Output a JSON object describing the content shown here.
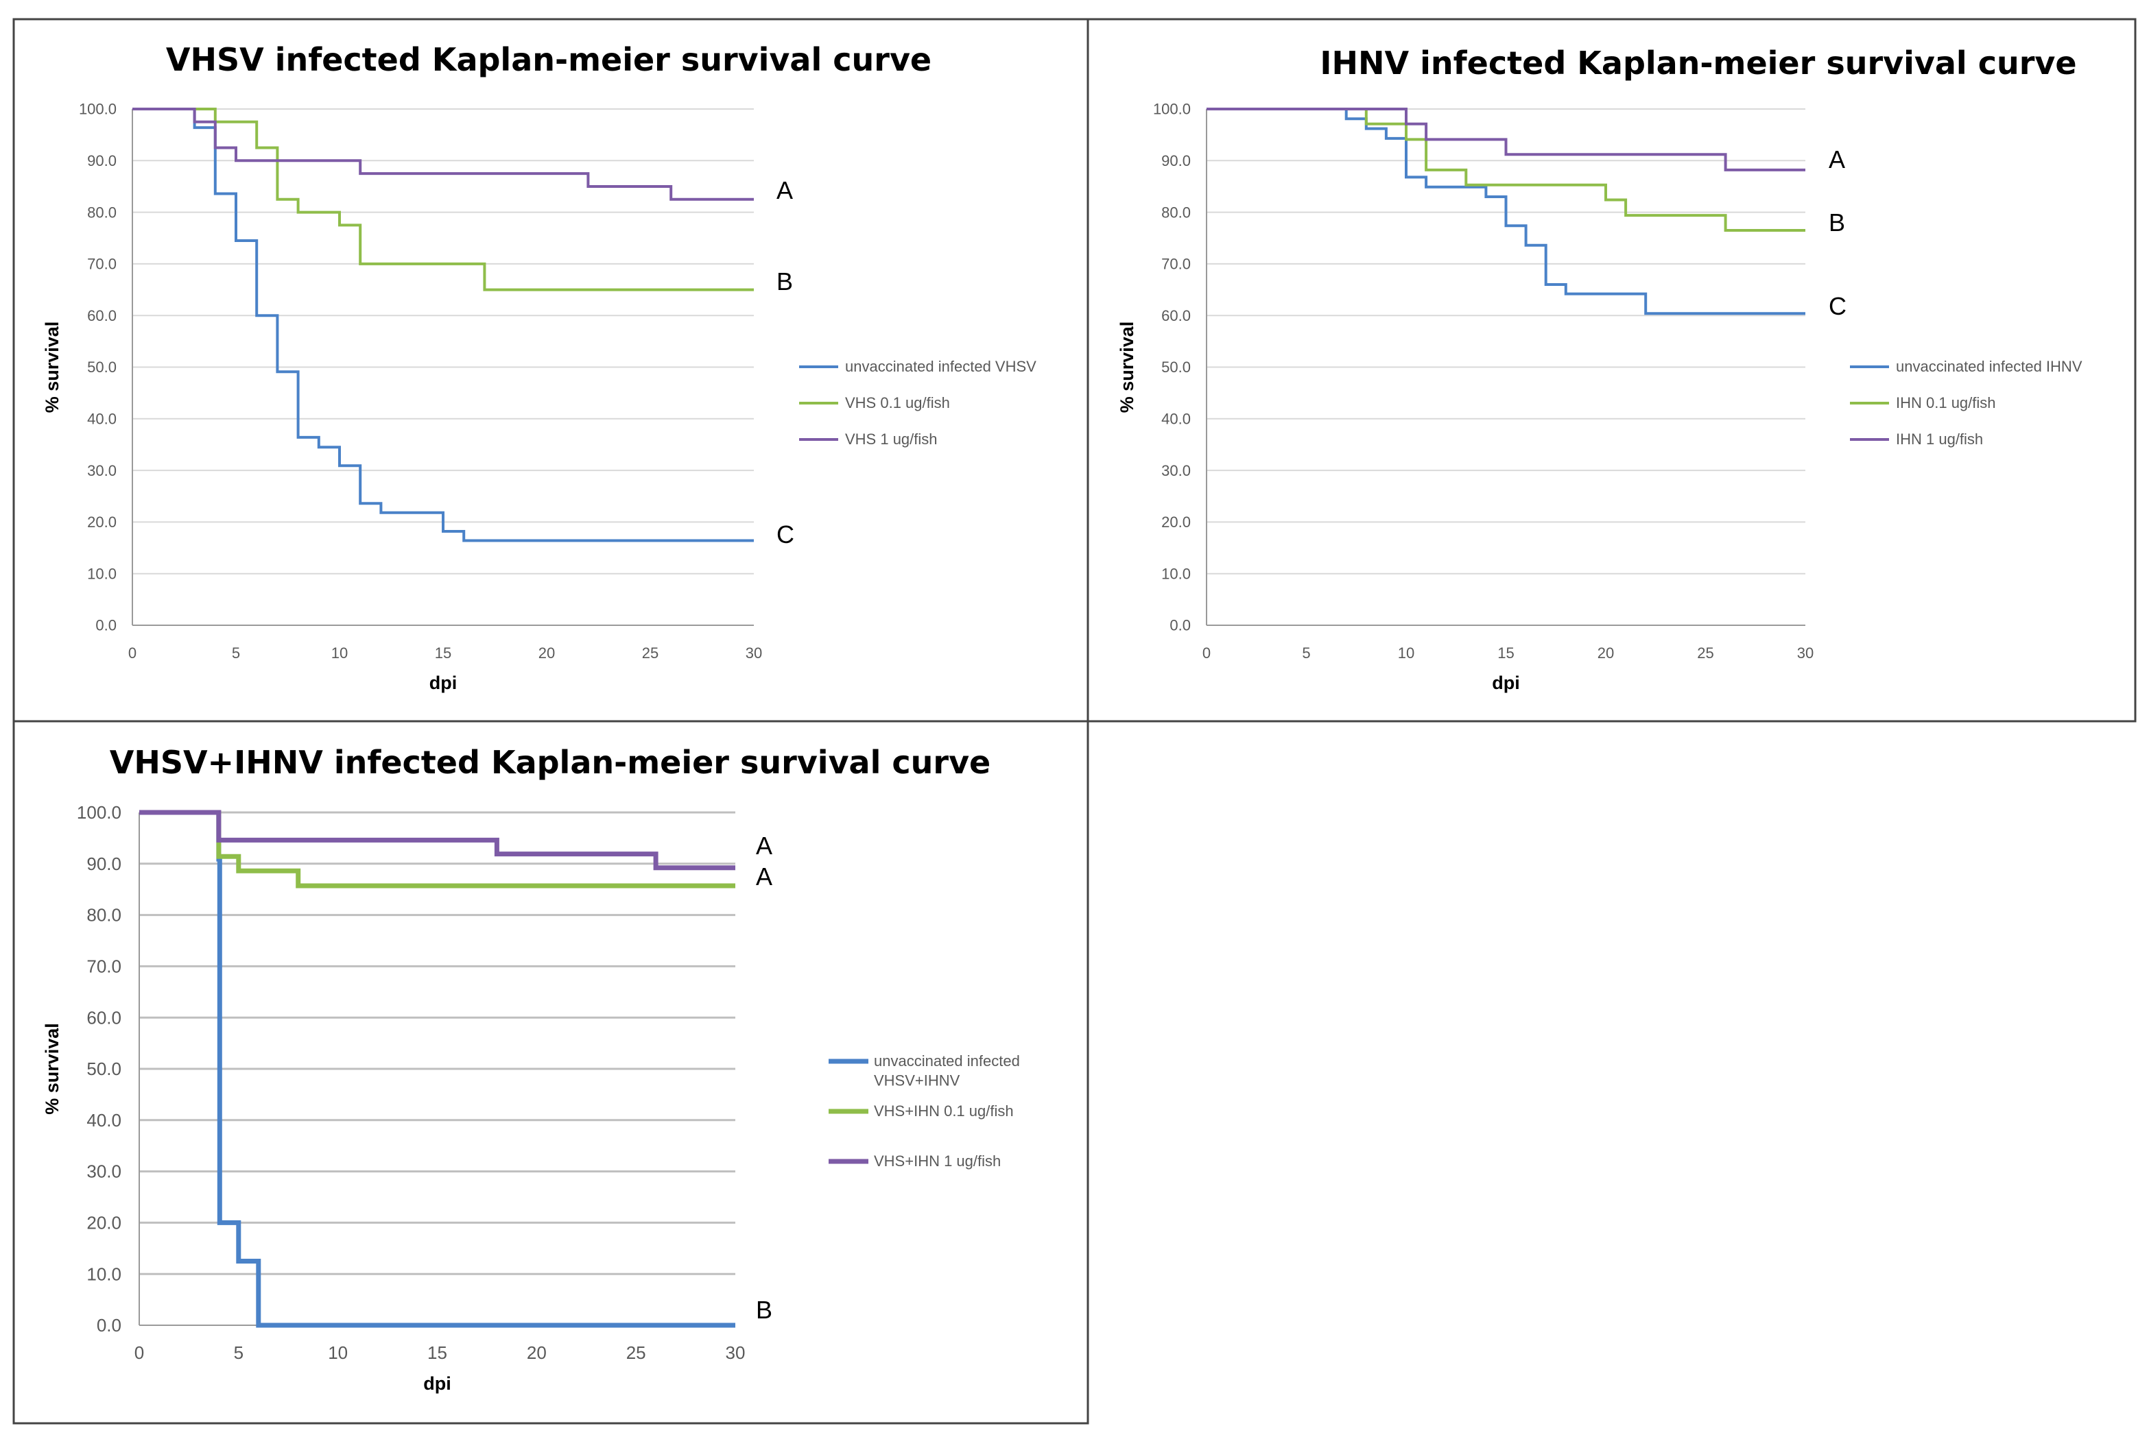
{
  "colors": {
    "blue": "#4a82c8",
    "green": "#8fbd4a",
    "purple": "#7d5ba6",
    "grid_light": "#d9d9d9",
    "grid_dark": "#bfbfbf",
    "axis": "#9a9a9a"
  },
  "chart_data": [
    {
      "type": "line",
      "step": true,
      "title": "VHSV infected Kaplan-meier survival curve",
      "xlabel": "dpi",
      "ylabel": "% survival",
      "xlim": [
        0,
        30
      ],
      "ylim": [
        0,
        100
      ],
      "x_ticks": [
        "0",
        "5",
        "10",
        "15",
        "20",
        "25",
        "30"
      ],
      "y_ticks": [
        "0.0",
        "10.0",
        "20.0",
        "30.0",
        "40.0",
        "50.0",
        "60.0",
        "70.0",
        "80.0",
        "90.0",
        "100.0"
      ],
      "gridlines": "horizontal",
      "legend_position": "right",
      "series": [
        {
          "name": "unvaccinated infected VHSV",
          "color": "blue",
          "letter": "C",
          "points": [
            [
              0,
              100
            ],
            [
              3,
              100
            ],
            [
              3,
              96.4
            ],
            [
              4,
              96.4
            ],
            [
              4,
              83.6
            ],
            [
              5,
              83.6
            ],
            [
              5,
              74.5
            ],
            [
              6,
              74.5
            ],
            [
              6,
              60
            ],
            [
              7,
              60
            ],
            [
              7,
              49.1
            ],
            [
              8,
              49.1
            ],
            [
              8,
              36.4
            ],
            [
              9,
              36.4
            ],
            [
              9,
              34.5
            ],
            [
              10,
              34.5
            ],
            [
              10,
              30.9
            ],
            [
              11,
              30.9
            ],
            [
              11,
              23.6
            ],
            [
              12,
              23.6
            ],
            [
              12,
              21.8
            ],
            [
              15,
              21.8
            ],
            [
              15,
              18.2
            ],
            [
              16,
              18.2
            ],
            [
              16,
              16.4
            ],
            [
              30,
              16.4
            ]
          ]
        },
        {
          "name": "VHS 0.1 ug/fish",
          "color": "green",
          "letter": "B",
          "points": [
            [
              0,
              100
            ],
            [
              4,
              100
            ],
            [
              4,
              97.5
            ],
            [
              6,
              97.5
            ],
            [
              6,
              92.5
            ],
            [
              7,
              92.5
            ],
            [
              7,
              82.5
            ],
            [
              8,
              82.5
            ],
            [
              8,
              80
            ],
            [
              10,
              80
            ],
            [
              10,
              77.5
            ],
            [
              11,
              77.5
            ],
            [
              11,
              70
            ],
            [
              17,
              70
            ],
            [
              17,
              65
            ],
            [
              30,
              65
            ]
          ]
        },
        {
          "name": "VHS 1 ug/fish",
          "color": "purple",
          "letter": "A",
          "points": [
            [
              0,
              100
            ],
            [
              3,
              100
            ],
            [
              3,
              97.5
            ],
            [
              4,
              97.5
            ],
            [
              4,
              92.5
            ],
            [
              5,
              92.5
            ],
            [
              5,
              90
            ],
            [
              11,
              90
            ],
            [
              11,
              87.5
            ],
            [
              22,
              87.5
            ],
            [
              22,
              85
            ],
            [
              26,
              85
            ],
            [
              26,
              82.5
            ],
            [
              30,
              82.5
            ]
          ]
        }
      ]
    },
    {
      "type": "line",
      "step": true,
      "title": "IHNV infected Kaplan-meier survival curve",
      "xlabel": "dpi",
      "ylabel": "% survival",
      "xlim": [
        0,
        30
      ],
      "ylim": [
        0,
        100
      ],
      "x_ticks": [
        "0",
        "5",
        "10",
        "15",
        "20",
        "25",
        "30"
      ],
      "y_ticks": [
        "0.0",
        "10.0",
        "20.0",
        "30.0",
        "40.0",
        "50.0",
        "60.0",
        "70.0",
        "80.0",
        "90.0",
        "100.0"
      ],
      "gridlines": "horizontal",
      "legend_position": "right",
      "series": [
        {
          "name": "unvaccinated infected IHNV",
          "color": "blue",
          "letter": "C",
          "points": [
            [
              0,
              100
            ],
            [
              7,
              100
            ],
            [
              7,
              98.1
            ],
            [
              8,
              98.1
            ],
            [
              8,
              96.2
            ],
            [
              9,
              96.2
            ],
            [
              9,
              94.3
            ],
            [
              10,
              94.3
            ],
            [
              10,
              86.8
            ],
            [
              11,
              86.8
            ],
            [
              11,
              84.9
            ],
            [
              14,
              84.9
            ],
            [
              14,
              83
            ],
            [
              15,
              83
            ],
            [
              15,
              77.4
            ],
            [
              16,
              77.4
            ],
            [
              16,
              73.6
            ],
            [
              17,
              73.6
            ],
            [
              17,
              66
            ],
            [
              18,
              66
            ],
            [
              18,
              64.2
            ],
            [
              22,
              64.2
            ],
            [
              22,
              60.4
            ],
            [
              30,
              60.4
            ]
          ]
        },
        {
          "name": "IHN 0.1 ug/fish",
          "color": "green",
          "letter": "B",
          "points": [
            [
              0,
              100
            ],
            [
              8,
              100
            ],
            [
              8,
              97.1
            ],
            [
              10,
              97.1
            ],
            [
              10,
              94.1
            ],
            [
              11,
              94.1
            ],
            [
              11,
              88.2
            ],
            [
              13,
              88.2
            ],
            [
              13,
              85.3
            ],
            [
              20,
              85.3
            ],
            [
              20,
              82.4
            ],
            [
              21,
              82.4
            ],
            [
              21,
              79.4
            ],
            [
              26,
              79.4
            ],
            [
              26,
              76.5
            ],
            [
              30,
              76.5
            ]
          ]
        },
        {
          "name": "IHN 1 ug/fish",
          "color": "purple",
          "letter": "A",
          "points": [
            [
              0,
              100
            ],
            [
              10,
              100
            ],
            [
              10,
              97.1
            ],
            [
              11,
              97.1
            ],
            [
              11,
              94.1
            ],
            [
              15,
              94.1
            ],
            [
              15,
              91.2
            ],
            [
              26,
              91.2
            ],
            [
              26,
              88.2
            ],
            [
              30,
              88.2
            ]
          ]
        }
      ]
    },
    {
      "type": "line",
      "step": true,
      "title": "VHSV+IHNV infected Kaplan-meier survival curve",
      "xlabel": "dpi",
      "ylabel": "% survival",
      "xlim": [
        0,
        30
      ],
      "ylim": [
        0,
        100
      ],
      "x_ticks": [
        "0",
        "5",
        "10",
        "15",
        "20",
        "25",
        "30"
      ],
      "y_ticks": [
        "0.0",
        "10.0",
        "20.0",
        "30.0",
        "40.0",
        "50.0",
        "60.0",
        "70.0",
        "80.0",
        "90.0",
        "100.0"
      ],
      "gridlines": "horizontal",
      "legend_position": "right",
      "series": [
        {
          "name": "unvaccinated infected VHSV+IHNV",
          "color": "blue",
          "letter": "B",
          "points": [
            [
              0,
              100
            ],
            [
              4,
              100
            ],
            [
              4,
              90.9
            ],
            [
              4.05,
              90.9
            ],
            [
              4.05,
              20
            ],
            [
              5,
              20
            ],
            [
              5,
              12.5
            ],
            [
              6,
              12.5
            ],
            [
              6,
              0
            ],
            [
              30,
              0
            ]
          ]
        },
        {
          "name": "VHS+IHN 0.1 ug/fish",
          "color": "green",
          "letter": "A",
          "points": [
            [
              0,
              100
            ],
            [
              4,
              100
            ],
            [
              4,
              91.4
            ],
            [
              5,
              91.4
            ],
            [
              5,
              88.6
            ],
            [
              8,
              88.6
            ],
            [
              8,
              85.7
            ],
            [
              30,
              85.7
            ]
          ]
        },
        {
          "name": "VHS+IHN 1 ug/fish",
          "color": "purple",
          "letter": "A",
          "points": [
            [
              0,
              100
            ],
            [
              4,
              100
            ],
            [
              4,
              94.6
            ],
            [
              18,
              94.6
            ],
            [
              18,
              91.9
            ],
            [
              26,
              91.9
            ],
            [
              26,
              89.2
            ],
            [
              30,
              89.2
            ]
          ]
        }
      ]
    }
  ]
}
